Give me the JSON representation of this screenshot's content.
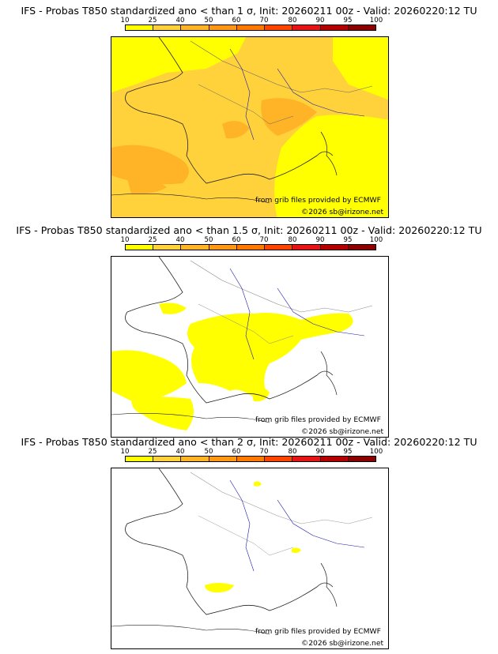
{
  "colorbar": {
    "ticks": [
      "10",
      "25",
      "40",
      "50",
      "60",
      "70",
      "80",
      "90",
      "95",
      "100"
    ],
    "colors": [
      "#ffff00",
      "#ffd23c",
      "#ffb428",
      "#ff9614",
      "#ff7800",
      "#ff4400",
      "#e61414",
      "#b40000",
      "#8c0000",
      "#500000"
    ]
  },
  "credits": {
    "grib": "from grib files provided by ECMWF",
    "copyright": "©2026 sb@irizone.net"
  },
  "panels": [
    {
      "title": "IFS - Probas T850  standardized ano < than 1 σ, Init: 20260211 00z - Valid: 20260220:12 TU",
      "threshold_sigma": 1
    },
    {
      "title": "IFS - Probas T850  standardized ano < than 1.5 σ, Init: 20260211 00z - Valid: 20260220:12 TU",
      "threshold_sigma": 1.5
    },
    {
      "title": "IFS - Probas T850  standardized ano < than 2 σ, Init: 20260211 00z - Valid: 20260220:12 TU",
      "threshold_sigma": 2
    }
  ]
}
